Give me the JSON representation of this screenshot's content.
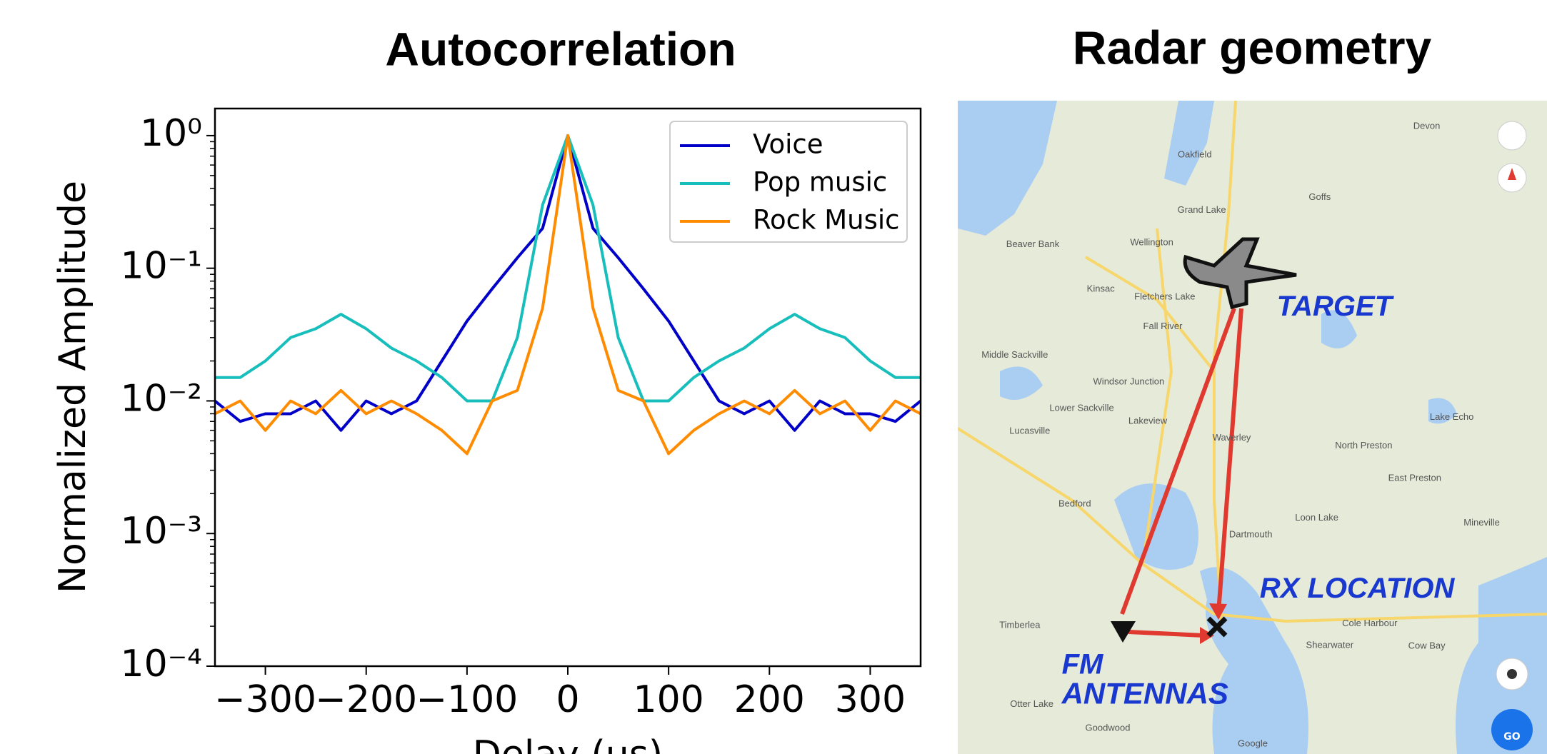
{
  "chart_data": {
    "type": "line",
    "title": "Autocorrelation",
    "x_label": "Delay (μs)",
    "y_label": "Normalized Amplitude",
    "yscale": "log",
    "legend": "upper right",
    "xlim": [
      -350,
      350
    ],
    "xticks": [
      {
        "value": -300,
        "label": "−300"
      },
      {
        "value": -200,
        "label": "−200"
      },
      {
        "value": -100,
        "label": "−100"
      },
      0,
      100,
      200,
      300
    ],
    "ylim": [
      0.0001,
      1.6
    ],
    "yticks": [
      {
        "value": 0.0001,
        "label": "10⁻⁴"
      },
      {
        "value": 0.001,
        "label": "10⁻³"
      },
      {
        "value": 0.01,
        "label": "10⁻²"
      },
      {
        "value": 0.1,
        "label": "10⁻¹"
      },
      {
        "value": 1,
        "label": "10⁰"
      }
    ],
    "x": [
      -350,
      -325,
      -300,
      -275,
      -250,
      -225,
      -200,
      -175,
      -150,
      -125,
      -100,
      -75,
      -50,
      -25,
      0,
      25,
      50,
      75,
      100,
      125,
      150,
      175,
      200,
      225,
      250,
      275,
      300,
      325,
      350
    ],
    "series": [
      {
        "name": "Voice",
        "color": "#0000c8",
        "values": [
          0.01,
          0.007,
          0.008,
          0.008,
          0.01,
          0.006,
          0.01,
          0.008,
          0.01,
          0.02,
          0.04,
          0.07,
          0.12,
          0.2,
          1,
          0.2,
          0.12,
          0.07,
          0.04,
          0.02,
          0.01,
          0.008,
          0.01,
          0.006,
          0.01,
          0.008,
          0.008,
          0.007,
          0.01
        ]
      },
      {
        "name": "Pop music",
        "color": "#17bebb",
        "values": [
          0.015,
          0.015,
          0.02,
          0.03,
          0.035,
          0.045,
          0.035,
          0.025,
          0.02,
          0.015,
          0.01,
          0.01,
          0.03,
          0.3,
          1,
          0.3,
          0.03,
          0.01,
          0.01,
          0.015,
          0.02,
          0.025,
          0.035,
          0.045,
          0.035,
          0.03,
          0.02,
          0.015,
          0.015
        ]
      },
      {
        "name": "Rock Music",
        "color": "#ff8c00",
        "values": [
          0.008,
          0.01,
          0.006,
          0.01,
          0.008,
          0.012,
          0.008,
          0.01,
          0.008,
          0.006,
          0.004,
          0.01,
          0.012,
          0.05,
          1,
          0.05,
          0.012,
          0.01,
          0.004,
          0.006,
          0.008,
          0.01,
          0.008,
          0.012,
          0.008,
          0.01,
          0.006,
          0.01,
          0.008
        ]
      }
    ]
  },
  "map": {
    "title": "Radar geometry",
    "annotations": [
      "TARGET",
      "RX LOCATION",
      "FM",
      "ANTENNAS"
    ],
    "places": [
      "Oakfield",
      "Grand Lake",
      "Wellington",
      "Beaver Bank",
      "Kinsac",
      "Fletchers Lake",
      "Fall River",
      "Middle Sackville",
      "Windsor Junction",
      "Lower Sackville",
      "Lakeview",
      "Lucasville",
      "Waverley",
      "Bedford",
      "Dartmouth",
      "Timberlea",
      "Cole Harbour",
      "Shearwater",
      "Cow Bay",
      "Goodwood",
      "Otter Lake",
      "North Preston",
      "East Preston",
      "Lake Echo",
      "Mineville",
      "Loon Lake",
      "Goffs",
      "Devon",
      "Google"
    ],
    "go_label": "GO"
  }
}
